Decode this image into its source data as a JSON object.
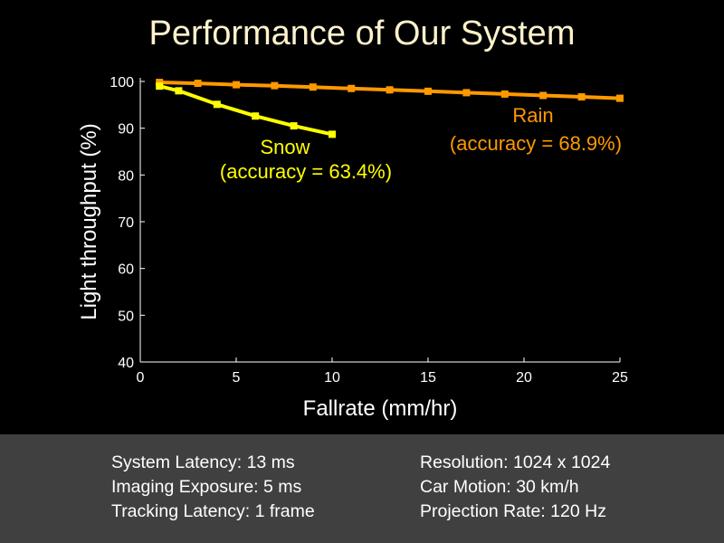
{
  "slide": {
    "title": "Performance of Our System"
  },
  "chart_data": {
    "type": "line",
    "title": "",
    "xlabel": "Fallrate (mm/hr)",
    "ylabel": "Light throughput (%)",
    "xlim": [
      0,
      25
    ],
    "ylim": [
      40,
      100
    ],
    "x_ticks": [
      0,
      5,
      10,
      15,
      20,
      25
    ],
    "y_ticks": [
      40,
      50,
      60,
      70,
      80,
      90,
      100
    ],
    "grid": false,
    "legend": "none",
    "series": [
      {
        "name": "Rain",
        "color": "#ff9900",
        "x": [
          1,
          3,
          5,
          7,
          9,
          11,
          13,
          15,
          17,
          19,
          21,
          23,
          25
        ],
        "y": [
          99.8,
          99.6,
          99.3,
          99.1,
          98.8,
          98.5,
          98.2,
          97.9,
          97.6,
          97.3,
          97.0,
          96.7,
          96.4
        ],
        "annotation_lines": [
          "Rain",
          "(accuracy = 68.9%)"
        ]
      },
      {
        "name": "Snow",
        "color": "#ffff00",
        "x": [
          1,
          2,
          4,
          6,
          8,
          10
        ],
        "y": [
          99.0,
          98.0,
          95.1,
          92.6,
          90.5,
          88.7
        ],
        "annotation_lines": [
          "Snow",
          "(accuracy = 63.4%)"
        ]
      }
    ]
  },
  "footer": {
    "left": [
      "System Latency: 13 ms",
      "Imaging Exposure: 5 ms",
      "Tracking Latency: 1 frame"
    ],
    "right": [
      "Resolution: 1024 x 1024",
      "Car Motion: 30 km/h",
      "Projection Rate: 120 Hz"
    ]
  }
}
